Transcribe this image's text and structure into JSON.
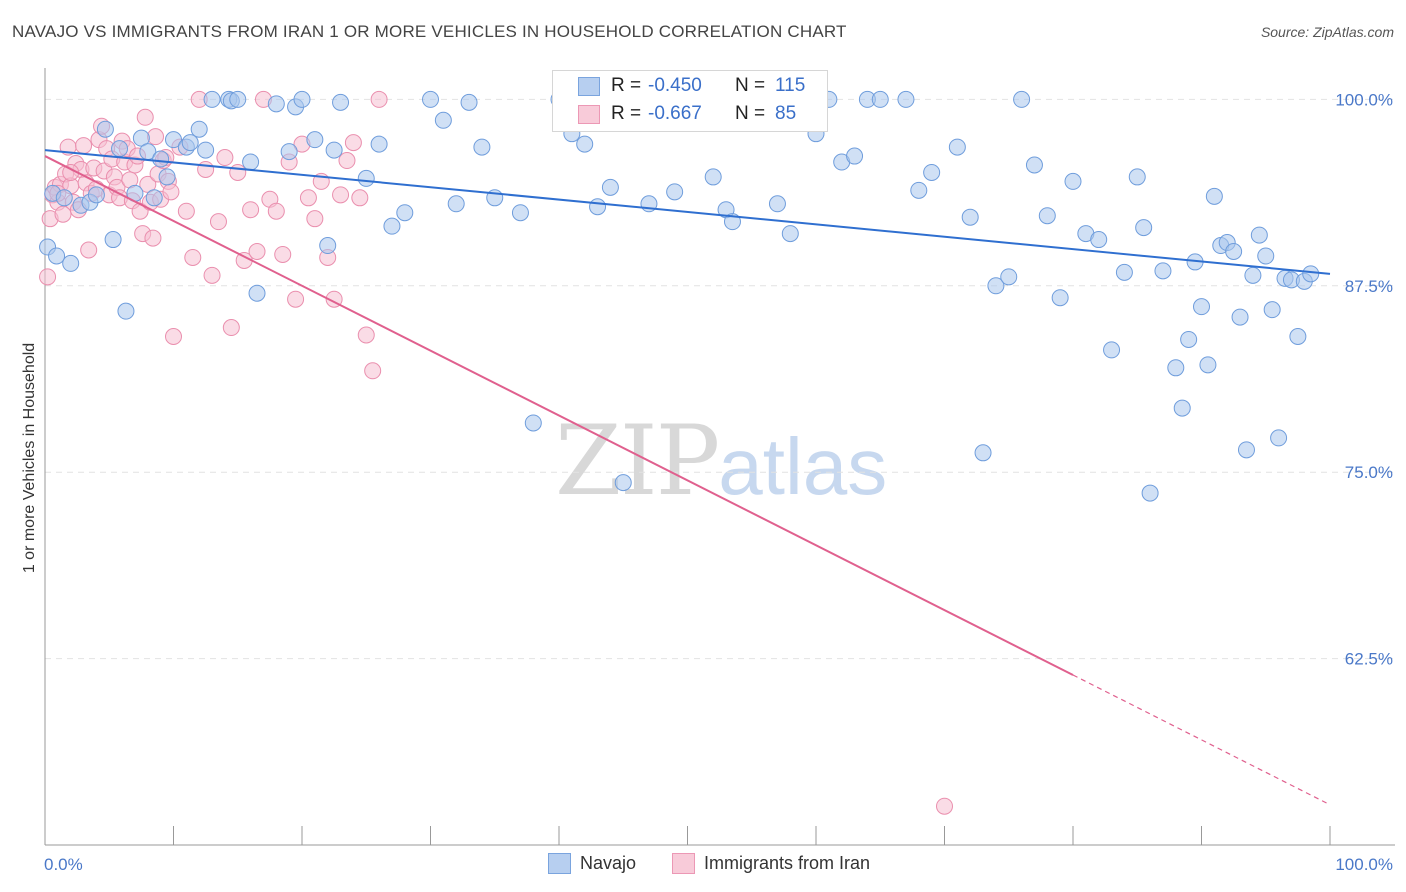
{
  "header": {
    "title": "NAVAJO VS IMMIGRANTS FROM IRAN 1 OR MORE VEHICLES IN HOUSEHOLD CORRELATION CHART",
    "source": "Source: ZipAtlas.com"
  },
  "watermark": {
    "zip": "ZIP",
    "atlas": "atlas"
  },
  "legend": {
    "rows": [
      {
        "r_label": "R =",
        "r_value": "-0.450",
        "n_label": "N =",
        "n_value": "115"
      },
      {
        "r_label": "R =",
        "r_value": "-0.667",
        "n_label": "N =",
        "n_value": "85"
      }
    ]
  },
  "bottom_legend": {
    "navajo": "Navajo",
    "iran": "Immigrants from Iran"
  },
  "colors": {
    "navajo_fill": "#a9c6ec",
    "navajo_stroke": "#6f9ddc",
    "navajo_line": "#2f6fd0",
    "iran_fill": "#f6c0d1",
    "iran_stroke": "#ea8fae",
    "iran_line": "#e0608e",
    "tick": "#4a78c8",
    "grid": "#e2e2e2"
  },
  "chart_data": {
    "type": "scatter",
    "title": "NAVAJO VS IMMIGRANTS FROM IRAN 1 OR MORE VEHICLES IN HOUSEHOLD CORRELATION CHART",
    "xlabel": "",
    "ylabel": "1 or more Vehicles in Household",
    "xlim": [
      0,
      100
    ],
    "ylim": [
      50,
      101.3
    ],
    "x_tick_labels": [
      "0.0%",
      "100.0%"
    ],
    "y_ticks": [
      62.5,
      75.0,
      87.5,
      100.0
    ],
    "y_tick_labels": [
      "62.5%",
      "75.0%",
      "87.5%",
      "100.0%"
    ],
    "grid": true,
    "series": [
      {
        "name": "Navajo",
        "points": [
          [
            0.2,
            90.1
          ],
          [
            0.6,
            93.7
          ],
          [
            0.9,
            89.5
          ],
          [
            1.5,
            93.4
          ],
          [
            2.0,
            89.0
          ],
          [
            2.8,
            92.9
          ],
          [
            3.5,
            93.1
          ],
          [
            4.0,
            93.6
          ],
          [
            4.7,
            98.0
          ],
          [
            5.3,
            90.6
          ],
          [
            5.8,
            96.7
          ],
          [
            6.3,
            85.8
          ],
          [
            7.0,
            93.7
          ],
          [
            7.5,
            97.4
          ],
          [
            8.0,
            96.5
          ],
          [
            8.5,
            93.4
          ],
          [
            9.0,
            96.0
          ],
          [
            9.5,
            94.8
          ],
          [
            10.0,
            97.3
          ],
          [
            11.0,
            96.8
          ],
          [
            11.3,
            97.1
          ],
          [
            12.0,
            98.0
          ],
          [
            12.5,
            96.6
          ],
          [
            13.0,
            100.0
          ],
          [
            14.3,
            100.0
          ],
          [
            14.5,
            99.9
          ],
          [
            15.0,
            100.0
          ],
          [
            16.0,
            95.8
          ],
          [
            16.5,
            87.0
          ],
          [
            18.0,
            99.7
          ],
          [
            19.0,
            96.5
          ],
          [
            19.5,
            99.5
          ],
          [
            20.0,
            100.0
          ],
          [
            21.0,
            97.3
          ],
          [
            22.0,
            90.2
          ],
          [
            22.5,
            96.6
          ],
          [
            23.0,
            99.8
          ],
          [
            25.0,
            94.7
          ],
          [
            26.0,
            97.0
          ],
          [
            27.0,
            91.5
          ],
          [
            28.0,
            92.4
          ],
          [
            30.0,
            100.0
          ],
          [
            31.0,
            98.6
          ],
          [
            32.0,
            93.0
          ],
          [
            33.0,
            99.8
          ],
          [
            34.0,
            96.8
          ],
          [
            35.0,
            93.4
          ],
          [
            37.0,
            92.4
          ],
          [
            38.0,
            78.3
          ],
          [
            40.0,
            100.0
          ],
          [
            41.0,
            97.7
          ],
          [
            42.0,
            97.0
          ],
          [
            43.0,
            92.8
          ],
          [
            44.0,
            94.1
          ],
          [
            45.0,
            74.3
          ],
          [
            46.0,
            100.0
          ],
          [
            47.0,
            93.0
          ],
          [
            48.0,
            100.0
          ],
          [
            49.0,
            93.8
          ],
          [
            50.0,
            100.0
          ],
          [
            52.0,
            94.8
          ],
          [
            53.0,
            92.6
          ],
          [
            53.5,
            91.8
          ],
          [
            55.0,
            100.0
          ],
          [
            57.0,
            93.0
          ],
          [
            58.0,
            91.0
          ],
          [
            60.0,
            97.7
          ],
          [
            61.0,
            100.0
          ],
          [
            62.0,
            95.8
          ],
          [
            63.0,
            96.2
          ],
          [
            64.0,
            100.0
          ],
          [
            65.0,
            100.0
          ],
          [
            67.0,
            100.0
          ],
          [
            68.0,
            93.9
          ],
          [
            69.0,
            95.1
          ],
          [
            71.0,
            96.8
          ],
          [
            72.0,
            92.1
          ],
          [
            73.0,
            76.3
          ],
          [
            74.0,
            87.5
          ],
          [
            75.0,
            88.1
          ],
          [
            76.0,
            100.0
          ],
          [
            77.0,
            95.6
          ],
          [
            78.0,
            92.2
          ],
          [
            79.0,
            86.7
          ],
          [
            80.0,
            94.5
          ],
          [
            81.0,
            91.0
          ],
          [
            82.0,
            90.6
          ],
          [
            83.0,
            83.2
          ],
          [
            84.0,
            88.4
          ],
          [
            85.0,
            94.8
          ],
          [
            85.5,
            91.4
          ],
          [
            86.0,
            73.6
          ],
          [
            87.0,
            88.5
          ],
          [
            88.0,
            82.0
          ],
          [
            88.5,
            79.3
          ],
          [
            89.0,
            83.9
          ],
          [
            89.5,
            89.1
          ],
          [
            90.0,
            86.1
          ],
          [
            90.5,
            82.2
          ],
          [
            91.0,
            93.5
          ],
          [
            91.5,
            90.2
          ],
          [
            92.0,
            90.4
          ],
          [
            92.5,
            89.8
          ],
          [
            93.0,
            85.4
          ],
          [
            93.5,
            76.5
          ],
          [
            94.0,
            88.2
          ],
          [
            94.5,
            90.9
          ],
          [
            95.0,
            89.5
          ],
          [
            95.5,
            85.9
          ],
          [
            96.0,
            77.3
          ],
          [
            96.5,
            88.0
          ],
          [
            97.0,
            87.9
          ],
          [
            97.5,
            84.1
          ],
          [
            98.0,
            87.8
          ],
          [
            98.5,
            88.3
          ]
        ],
        "trend": {
          "x": [
            0,
            100
          ],
          "y": [
            96.6,
            88.3
          ]
        }
      },
      {
        "name": "Immigrants from Iran",
        "points": [
          [
            0.2,
            88.1
          ],
          [
            0.4,
            92.0
          ],
          [
            0.6,
            93.6
          ],
          [
            0.8,
            94.1
          ],
          [
            1.0,
            93.1
          ],
          [
            1.2,
            94.3
          ],
          [
            1.4,
            92.3
          ],
          [
            1.6,
            95.0
          ],
          [
            1.8,
            96.8
          ],
          [
            2.0,
            94.2
          ],
          [
            2.2,
            93.1
          ],
          [
            2.4,
            95.7
          ],
          [
            2.6,
            92.6
          ],
          [
            2.8,
            95.3
          ],
          [
            3.0,
            96.9
          ],
          [
            3.2,
            94.4
          ],
          [
            3.4,
            89.9
          ],
          [
            3.6,
            93.7
          ],
          [
            3.8,
            95.4
          ],
          [
            4.0,
            94.0
          ],
          [
            4.2,
            97.3
          ],
          [
            4.4,
            98.2
          ],
          [
            4.6,
            95.2
          ],
          [
            4.8,
            96.7
          ],
          [
            5.0,
            93.6
          ],
          [
            5.2,
            96.0
          ],
          [
            5.4,
            94.8
          ],
          [
            5.6,
            94.1
          ],
          [
            5.8,
            93.4
          ],
          [
            6.0,
            97.2
          ],
          [
            6.2,
            95.8
          ],
          [
            6.4,
            96.7
          ],
          [
            6.6,
            94.6
          ],
          [
            6.8,
            93.2
          ],
          [
            7.0,
            95.6
          ],
          [
            7.2,
            96.2
          ],
          [
            7.4,
            92.5
          ],
          [
            7.6,
            91.0
          ],
          [
            7.8,
            98.8
          ],
          [
            8.0,
            94.3
          ],
          [
            8.2,
            93.1
          ],
          [
            8.4,
            90.7
          ],
          [
            8.6,
            97.5
          ],
          [
            8.8,
            95.0
          ],
          [
            9.0,
            93.3
          ],
          [
            9.2,
            95.9
          ],
          [
            9.4,
            96.1
          ],
          [
            9.6,
            94.5
          ],
          [
            9.8,
            93.8
          ],
          [
            10.0,
            84.1
          ],
          [
            10.5,
            96.8
          ],
          [
            11.0,
            92.5
          ],
          [
            11.5,
            89.4
          ],
          [
            12.0,
            100.0
          ],
          [
            12.5,
            95.3
          ],
          [
            13.0,
            88.2
          ],
          [
            13.5,
            91.8
          ],
          [
            14.0,
            96.1
          ],
          [
            14.5,
            84.7
          ],
          [
            15.0,
            95.1
          ],
          [
            15.5,
            89.2
          ],
          [
            16.0,
            92.6
          ],
          [
            16.5,
            89.8
          ],
          [
            17.0,
            100.0
          ],
          [
            17.5,
            93.3
          ],
          [
            18.0,
            92.5
          ],
          [
            18.5,
            89.6
          ],
          [
            19.0,
            95.8
          ],
          [
            19.5,
            86.6
          ],
          [
            20.0,
            97.0
          ],
          [
            20.5,
            93.4
          ],
          [
            21.0,
            92.0
          ],
          [
            21.5,
            94.5
          ],
          [
            22.0,
            89.4
          ],
          [
            22.5,
            86.6
          ],
          [
            23.0,
            93.6
          ],
          [
            23.5,
            95.9
          ],
          [
            24.0,
            97.1
          ],
          [
            24.5,
            93.4
          ],
          [
            25.0,
            84.2
          ],
          [
            25.5,
            81.8
          ],
          [
            26.0,
            100.0
          ],
          [
            70.0,
            52.6
          ],
          [
            1.0,
            93.7
          ],
          [
            2.0,
            95.1
          ]
        ],
        "trend": {
          "x": [
            0,
            80
          ],
          "y": [
            96.2,
            61.4
          ]
        },
        "trend_extension": {
          "x": [
            80,
            100
          ],
          "y": [
            61.4,
            52.7
          ]
        }
      }
    ]
  }
}
